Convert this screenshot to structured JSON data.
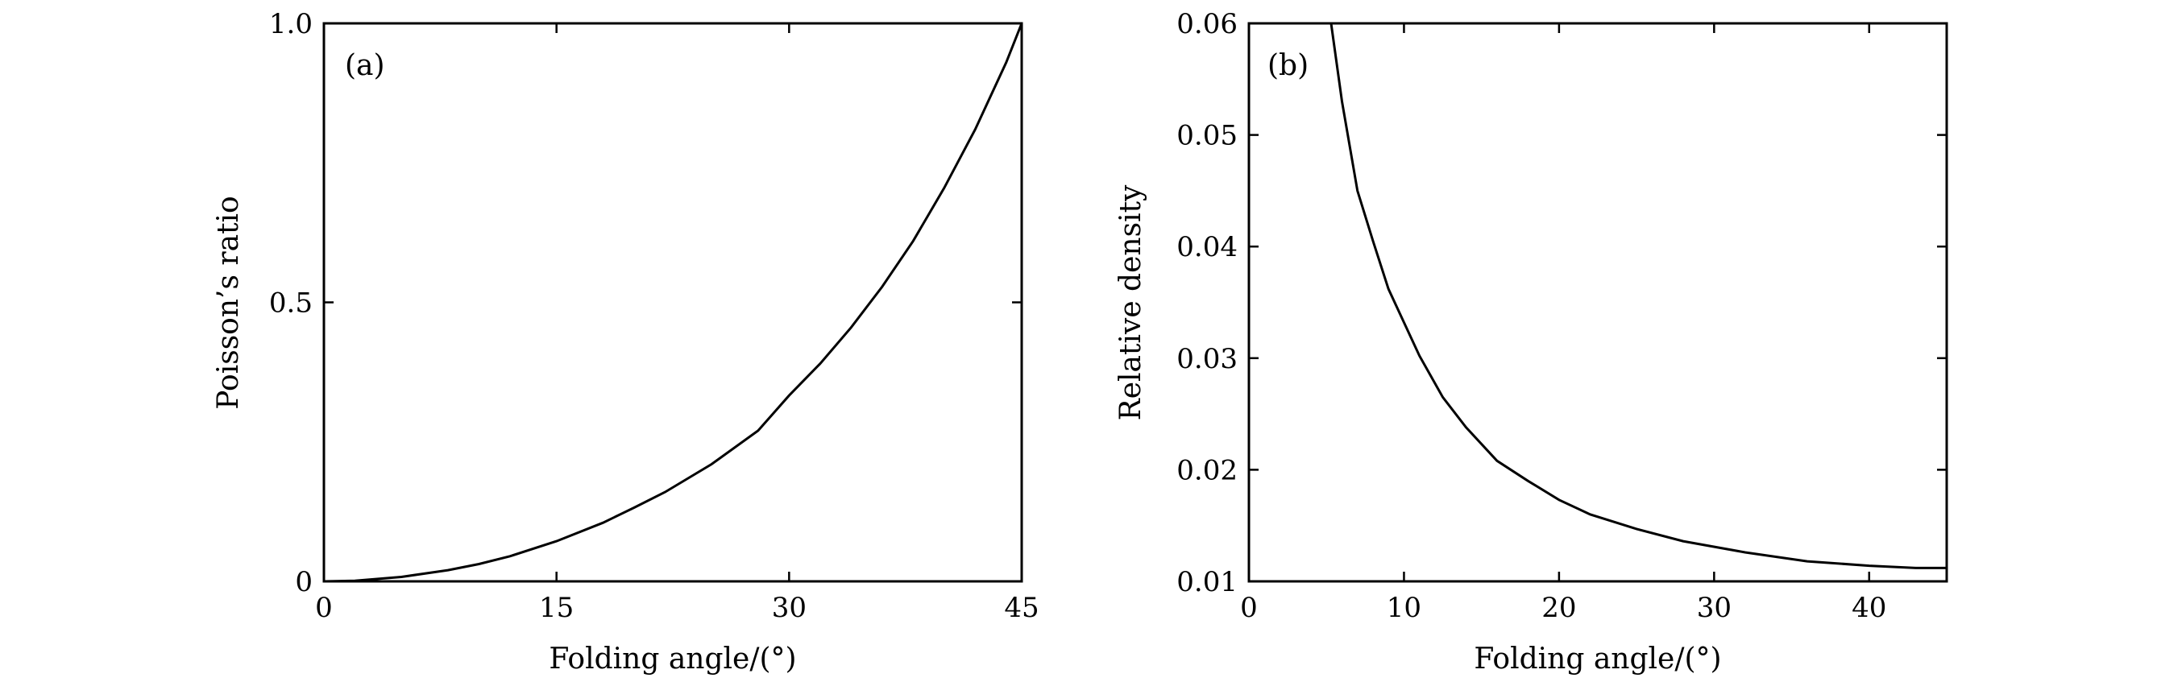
{
  "chart_data": [
    {
      "panel": "(a)",
      "type": "line",
      "xlabel": "Folding angle/(°)",
      "ylabel": "Poisson’s ratio",
      "xlim": [
        0,
        45
      ],
      "ylim": [
        0,
        1.0
      ],
      "xticks": [
        0,
        15,
        30,
        45
      ],
      "xtick_labels": [
        "0",
        "15",
        "30",
        "45"
      ],
      "yticks": [
        0,
        0.5,
        1.0
      ],
      "ytick_labels": [
        "0",
        "0.5",
        "1.0"
      ],
      "grid": false,
      "series": [
        {
          "x": [
            0,
            2,
            5,
            8,
            10,
            12,
            15,
            18,
            20,
            22,
            25,
            28,
            30,
            32,
            34,
            36,
            38,
            40,
            42,
            44,
            45
          ],
          "y": [
            0,
            0.001,
            0.008,
            0.02,
            0.031,
            0.045,
            0.072,
            0.105,
            0.132,
            0.16,
            0.21,
            0.27,
            0.333,
            0.39,
            0.455,
            0.528,
            0.61,
            0.705,
            0.81,
            0.93,
            1.0
          ]
        }
      ]
    },
    {
      "panel": "(b)",
      "type": "line",
      "xlabel": "Folding angle/(°)",
      "ylabel": "Relative density",
      "xlim": [
        0,
        45
      ],
      "ylim": [
        0.01,
        0.06
      ],
      "xticks": [
        0,
        10,
        20,
        30,
        40
      ],
      "xtick_labels": [
        "0",
        "10",
        "20",
        "30",
        "40"
      ],
      "yticks": [
        0.01,
        0.02,
        0.03,
        0.04,
        0.05,
        0.06
      ],
      "ytick_labels": [
        "0.01",
        "0.02",
        "0.03",
        "0.04",
        "0.05",
        "0.06"
      ],
      "grid": false,
      "series": [
        {
          "x": [
            5.3,
            6,
            7,
            8,
            9,
            10,
            11,
            12.5,
            14,
            16,
            18,
            20,
            22,
            25,
            28,
            32,
            36,
            40,
            43,
            45
          ],
          "y": [
            0.06,
            0.053,
            0.045,
            0.0405,
            0.0362,
            0.0332,
            0.0302,
            0.0265,
            0.0238,
            0.0208,
            0.019,
            0.0173,
            0.016,
            0.0147,
            0.0136,
            0.0126,
            0.0118,
            0.0114,
            0.0112,
            0.0112
          ]
        }
      ]
    }
  ]
}
